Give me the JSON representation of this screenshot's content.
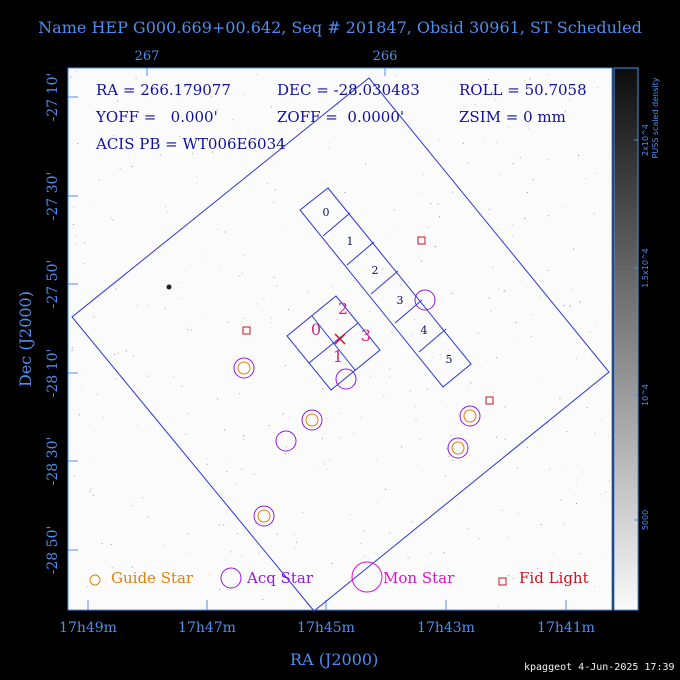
{
  "title": "Name HEP G000.669+00.642, Seq # 201847, Obsid 30961, ST Scheduled",
  "top_axis": {
    "ticks": [
      "267",
      "266"
    ]
  },
  "x_axis": {
    "label": "RA (J2000)",
    "ticks": [
      "17h49m",
      "17h47m",
      "17h45m",
      "17h43m",
      "17h41m"
    ]
  },
  "y_axis": {
    "label": "Dec (J2000)",
    "ticks": [
      "-27 10'",
      "-27 30'",
      "-27 50'",
      "-28 10'",
      "-28 30'",
      "-28 50'"
    ]
  },
  "colorbar": {
    "label": "PUSS scaled density",
    "ticks": [
      "2x10^4",
      "1.5x10^4",
      "10^4",
      "5000"
    ]
  },
  "info": {
    "ra": "RA = 266.179077",
    "dec": "DEC = -28.030483",
    "roll": "ROLL = 50.7058",
    "yoff": "YOFF =   0.000'",
    "zoff": "ZOFF =  0.0000'",
    "zsim": "ZSIM = 0 mm",
    "acis_pb": "ACIS PB = WT006E6034"
  },
  "chip_labels": {
    "acis_s": [
      "0",
      "1",
      "2",
      "3",
      "4",
      "5"
    ],
    "acis_i": [
      "0",
      "1",
      "2",
      "3"
    ]
  },
  "legend": {
    "guide": "Guide Star",
    "acq": "Acq Star",
    "mon": "Mon Star",
    "fid": "Fid Light"
  },
  "footer": "kpaggeot  4-Jun-2025 17:39",
  "colors": {
    "axis": "#4d8ff0",
    "field": "#2a38d8",
    "guide": "#e08010",
    "acq": "#9018e0",
    "mon": "#e010d0",
    "fid": "#d01020",
    "info_text": "#1010a0",
    "acis_i_label": "#d02880"
  }
}
